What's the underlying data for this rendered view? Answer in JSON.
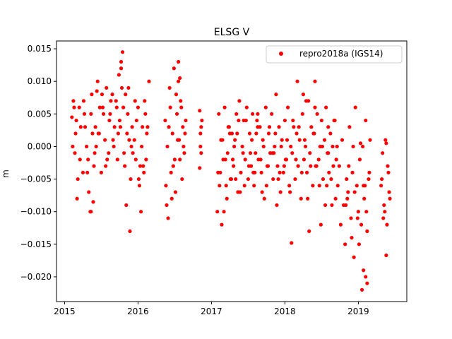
{
  "chart_data": {
    "type": "scatter",
    "title": "ELSG V",
    "xlabel": "",
    "ylabel": "m",
    "xlim": [
      2014.89,
      2019.66
    ],
    "ylim": [
      -0.0238,
      0.0162
    ],
    "xticks": [
      2015,
      2016,
      2017,
      2018,
      2019
    ],
    "xtick_labels": [
      "2015",
      "2016",
      "2017",
      "2018",
      "2019"
    ],
    "yticks": [
      0.015,
      0.01,
      0.005,
      0.0,
      -0.005,
      -0.01,
      -0.015,
      -0.02
    ],
    "ytick_labels": [
      "0.015",
      "0.010",
      "0.005",
      "0.000",
      "−0.005",
      "−0.010",
      "−0.015",
      "−0.020"
    ],
    "grid": false,
    "legend_position": "top-right",
    "series": [
      {
        "name": "repro2018a (IGS14)",
        "color": "#ff0000",
        "marker": "circle",
        "x": [
          2015.1,
          2015.12,
          2015.14,
          2015.15,
          2015.17,
          2015.2,
          2015.22,
          2015.25,
          2015.27,
          2015.3,
          2015.32,
          2015.35,
          2015.37,
          2015.4,
          2015.42,
          2015.45,
          2015.47,
          2015.5,
          2015.52,
          2015.55,
          2015.57,
          2015.6,
          2015.62,
          2015.65,
          2015.67,
          2015.7,
          2015.72,
          2015.75,
          2015.77,
          2015.8,
          2015.82,
          2015.85,
          2015.87,
          2015.9,
          2015.92,
          2015.95,
          2015.97,
          2016.0,
          2016.02,
          2016.05,
          2016.07,
          2016.1,
          2016.12,
          2016.15,
          2015.11,
          2015.16,
          2015.21,
          2015.26,
          2015.31,
          2015.36,
          2015.41,
          2015.46,
          2015.51,
          2015.56,
          2015.61,
          2015.66,
          2015.71,
          2015.76,
          2015.81,
          2015.86,
          2015.91,
          2015.96,
          2016.01,
          2016.06,
          2016.11,
          2015.33,
          2015.38,
          2015.48,
          2015.58,
          2015.68,
          2015.78,
          2015.88,
          2015.98,
          2016.08,
          2015.13,
          2015.18,
          2015.28,
          2015.43,
          2015.53,
          2015.63,
          2015.73,
          2015.83,
          2015.93,
          2016.03,
          2016.13,
          2015.79,
          2015.77,
          2015.74,
          2015.84,
          2015.89,
          2016.04,
          2016.09,
          2015.39,
          2015.36,
          2015.44,
          2016.37,
          2016.38,
          2016.4,
          2016.41,
          2016.43,
          2016.45,
          2016.47,
          2016.49,
          2016.51,
          2016.53,
          2016.55,
          2016.57,
          2016.59,
          2016.61,
          2016.63,
          2016.65,
          2016.39,
          2016.44,
          2016.48,
          2016.52,
          2016.56,
          2016.6,
          2016.64,
          2016.42,
          2016.5,
          2016.58,
          2016.46,
          2016.54,
          2016.62,
          2016.55,
          2016.57,
          2016.84,
          2016.85,
          2016.86,
          2016.87,
          2016.85,
          2016.86,
          2016.84,
          2017.08,
          2017.1,
          2017.12,
          2017.14,
          2017.16,
          2017.18,
          2017.2,
          2017.22,
          2017.24,
          2017.26,
          2017.28,
          2017.3,
          2017.32,
          2017.34,
          2017.36,
          2017.38,
          2017.4,
          2017.42,
          2017.44,
          2017.46,
          2017.48,
          2017.5,
          2017.52,
          2017.54,
          2017.56,
          2017.58,
          2017.6,
          2017.62,
          2017.64,
          2017.66,
          2017.68,
          2017.7,
          2017.72,
          2017.74,
          2017.76,
          2017.78,
          2017.8,
          2017.82,
          2017.84,
          2017.86,
          2017.88,
          2017.9,
          2017.92,
          2017.94,
          2017.96,
          2017.98,
          2018.0,
          2018.02,
          2018.04,
          2018.06,
          2018.08,
          2018.1,
          2018.12,
          2018.14,
          2018.16,
          2018.18,
          2018.2,
          2018.22,
          2018.24,
          2018.26,
          2018.28,
          2018.3,
          2018.32,
          2018.34,
          2018.36,
          2018.38,
          2018.4,
          2018.42,
          2018.44,
          2018.46,
          2018.48,
          2018.5,
          2018.52,
          2018.54,
          2018.56,
          2018.58,
          2018.6,
          2018.62,
          2018.64,
          2018.66,
          2018.68,
          2017.11,
          2017.15,
          2017.19,
          2017.23,
          2017.27,
          2017.31,
          2017.35,
          2017.39,
          2017.43,
          2017.47,
          2017.51,
          2017.55,
          2017.59,
          2017.63,
          2017.67,
          2017.71,
          2017.75,
          2017.79,
          2017.83,
          2017.87,
          2017.91,
          2017.95,
          2017.99,
          2018.03,
          2018.07,
          2018.11,
          2018.15,
          2018.19,
          2018.23,
          2018.27,
          2018.31,
          2018.35,
          2018.39,
          2018.43,
          2018.47,
          2018.51,
          2018.55,
          2018.59,
          2018.63,
          2017.13,
          2017.21,
          2017.29,
          2017.37,
          2017.45,
          2017.53,
          2017.61,
          2017.69,
          2017.77,
          2017.85,
          2017.93,
          2018.01,
          2018.09,
          2018.17,
          2018.25,
          2018.33,
          2018.41,
          2018.49,
          2018.57,
          2018.65,
          2017.57,
          2017.63,
          2017.89,
          2018.29,
          2018.41,
          2018.59,
          2017.09,
          2017.17,
          2017.25,
          2017.33,
          2018.67,
          2018.69,
          2018.7,
          2018.71,
          2018.72,
          2018.74,
          2018.76,
          2018.78,
          2018.8,
          2018.82,
          2018.84,
          2018.86,
          2018.88,
          2018.9,
          2018.92,
          2018.94,
          2018.96,
          2018.98,
          2019.0,
          2019.02,
          2019.04,
          2019.06,
          2019.08,
          2019.1,
          2019.12,
          2019.14,
          2019.16,
          2018.83,
          2018.87,
          2018.91,
          2018.95,
          2018.99,
          2019.03,
          2019.07,
          2019.11,
          2019.15,
          2018.85,
          2018.93,
          2019.01,
          2019.09,
          2019.05,
          2019.1,
          2019.07,
          2019.12,
          2019.31,
          2019.33,
          2019.35,
          2019.37,
          2019.39,
          2019.41,
          2019.43,
          2019.32,
          2019.36,
          2019.4,
          2019.42,
          2019.34,
          2019.38,
          2019.38
        ],
        "y": [
          0.0045,
          0.007,
          -0.001,
          0.002,
          -0.008,
          0.006,
          0.003,
          -0.004,
          0.005,
          0.0,
          -0.002,
          -0.01,
          0.008,
          -0.003,
          0.003,
          0.01,
          0.002,
          -0.004,
          0.006,
          0.001,
          0.009,
          -0.001,
          0.005,
          0.008,
          0.0,
          0.007,
          -0.002,
          0.004,
          0.012,
          0.006,
          -0.003,
          0.002,
          0.009,
          -0.005,
          0.003,
          0.001,
          -0.002,
          0.006,
          -0.006,
          0.0,
          -0.003,
          0.005,
          0.002,
          0.01,
          0.0,
          0.004,
          -0.002,
          0.007,
          -0.004,
          0.005,
          -0.001,
          0.002,
          0.008,
          -0.003,
          0.004,
          0.001,
          0.006,
          0.003,
          -0.001,
          0.005,
          0.0,
          0.007,
          -0.005,
          0.003,
          -0.002,
          -0.007,
          0.002,
          0.006,
          -0.002,
          0.003,
          0.009,
          0.001,
          0.004,
          -0.004,
          0.006,
          -0.005,
          0.003,
          0.0,
          0.005,
          0.007,
          0.002,
          0.008,
          -0.001,
          -0.003,
          0.003,
          0.0145,
          0.013,
          0.011,
          -0.009,
          -0.013,
          -0.01,
          0.007,
          -0.0085,
          -0.01,
          0.0085,
          0.004,
          -0.006,
          0.0,
          -0.011,
          0.009,
          -0.004,
          0.002,
          0.012,
          -0.007,
          0.005,
          0.01,
          -0.002,
          0.006,
          0.003,
          -0.001,
          0.004,
          -0.009,
          0.006,
          -0.003,
          0.008,
          0.001,
          -0.005,
          0.002,
          0.003,
          -0.002,
          0.007,
          -0.008,
          0.001,
          0.0,
          0.013,
          0.0105,
          0.0055,
          0.002,
          -0.001,
          0.004,
          0.0,
          0.003,
          -0.0033,
          -0.01,
          0.005,
          -0.004,
          -0.012,
          -0.002,
          0.006,
          -0.006,
          -0.001,
          0.003,
          -0.005,
          0.002,
          -0.003,
          0.001,
          0.005,
          -0.007,
          0.007,
          -0.004,
          0.0,
          0.004,
          -0.002,
          0.006,
          -0.005,
          0.002,
          -0.003,
          0.005,
          -0.006,
          -0.001,
          0.004,
          -0.002,
          0.003,
          -0.004,
          0.001,
          -0.008,
          0.006,
          -0.003,
          0.002,
          -0.001,
          0.005,
          -0.005,
          0.0,
          0.008,
          -0.003,
          0.003,
          -0.007,
          0.001,
          -0.004,
          0.004,
          -0.002,
          0.006,
          -0.006,
          0.0,
          -0.001,
          0.003,
          -0.005,
          0.002,
          -0.003,
          0.001,
          -0.008,
          0.005,
          -0.002,
          0.0,
          -0.004,
          0.007,
          -0.001,
          0.003,
          -0.006,
          0.002,
          -0.003,
          0.005,
          -0.002,
          0.0,
          0.004,
          -0.005,
          0.001,
          0.006,
          -0.001,
          -0.004,
          0.002,
          -0.009,
          -0.003,
          0.004,
          -0.006,
          0.001,
          -0.002,
          0.003,
          -0.005,
          0.0,
          0.002,
          -0.007,
          -0.001,
          0.004,
          -0.003,
          0.001,
          -0.004,
          0.005,
          -0.002,
          0.0,
          -0.006,
          0.003,
          -0.001,
          0.002,
          -0.005,
          0.0,
          -0.003,
          0.001,
          -0.007,
          0.004,
          -0.002,
          0.003,
          -0.004,
          0.001,
          -0.008,
          -0.003,
          0.002,
          -0.003,
          -0.006,
          0.0,
          -0.009,
          0.003,
          -0.005,
          0.001,
          -0.008,
          -0.002,
          0.004,
          -0.006,
          -0.001,
          0.002,
          -0.007,
          -0.003,
          -0.001,
          -0.004,
          -0.002,
          -0.0148,
          0.01,
          0.008,
          -0.013,
          0.01,
          -0.012,
          -0.006,
          0.0,
          -0.004,
          0.003,
          -0.009,
          0.007,
          0.006,
          -0.001,
          -0.004,
          -0.01,
          0.002,
          -0.005,
          0.004,
          -0.008,
          -0.002,
          0.0,
          -0.006,
          -0.003,
          -0.012,
          0.001,
          -0.009,
          -0.015,
          -0.005,
          -0.007,
          0.003,
          -0.011,
          -0.004,
          -0.017,
          0.006,
          -0.006,
          -0.01,
          -0.002,
          -0.012,
          0.0,
          -0.008,
          0.004,
          -0.013,
          -0.005,
          0.001,
          -0.009,
          -0.003,
          -0.014,
          -0.007,
          -0.011,
          0.0005,
          -0.006,
          -0.01,
          -0.004,
          -0.008,
          0.0,
          -0.015,
          -0.006,
          -0.022,
          -0.02,
          -0.019,
          -0.021,
          -0.006,
          -0.001,
          -0.009,
          0.001,
          -0.012,
          -0.004,
          -0.008,
          -0.005,
          -0.01,
          -0.003,
          -0.007,
          -0.011,
          0.0005,
          -0.0167
        ]
      }
    ]
  }
}
